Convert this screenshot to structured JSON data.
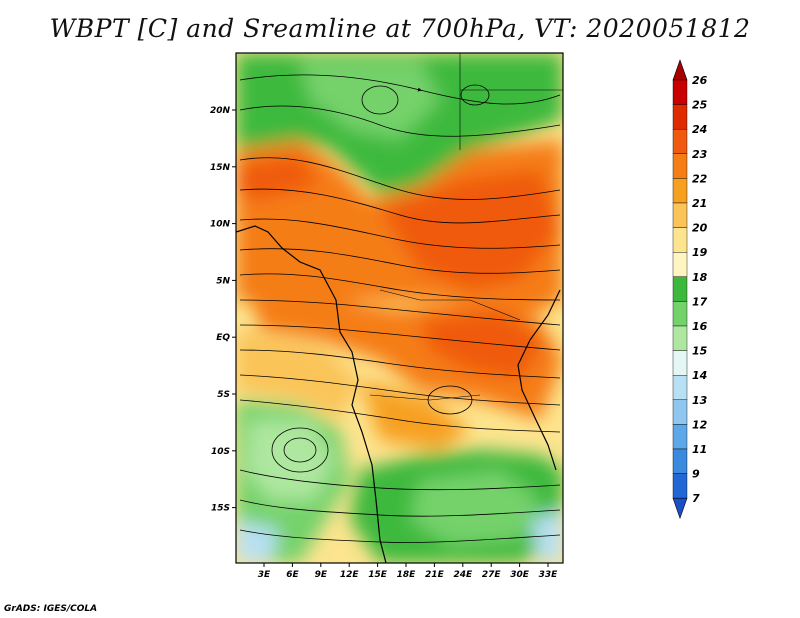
{
  "title": "WBPT [C] and Sreamline at 700hPa, VT: 2020051812",
  "footer": "GrADS: IGES/COLA",
  "map": {
    "lon_labels": [
      "3E",
      "6E",
      "9E",
      "12E",
      "15E",
      "18E",
      "21E",
      "24E",
      "27E",
      "30E",
      "33E"
    ],
    "lat_labels": [
      "20N",
      "15N",
      "10N",
      "5N",
      "EQ",
      "5S",
      "10S",
      "15S"
    ]
  },
  "colorbar": {
    "labels": [
      "26",
      "25",
      "24",
      "23",
      "22",
      "21",
      "20",
      "19",
      "18",
      "17",
      "16",
      "15",
      "14",
      "13",
      "12",
      "11",
      "9",
      "7"
    ],
    "colors": [
      "#a80000",
      "#c80000",
      "#e02a00",
      "#f05a10",
      "#f57d15",
      "#f7a020",
      "#fac458",
      "#fde48f",
      "#fff5c0",
      "#3cb93c",
      "#74d26a",
      "#aee79f",
      "#e4f7f5",
      "#b8e0f4",
      "#8ec6ef",
      "#5ea7e8",
      "#3c8ae0",
      "#2367d6",
      "#1a4fc8"
    ]
  }
}
